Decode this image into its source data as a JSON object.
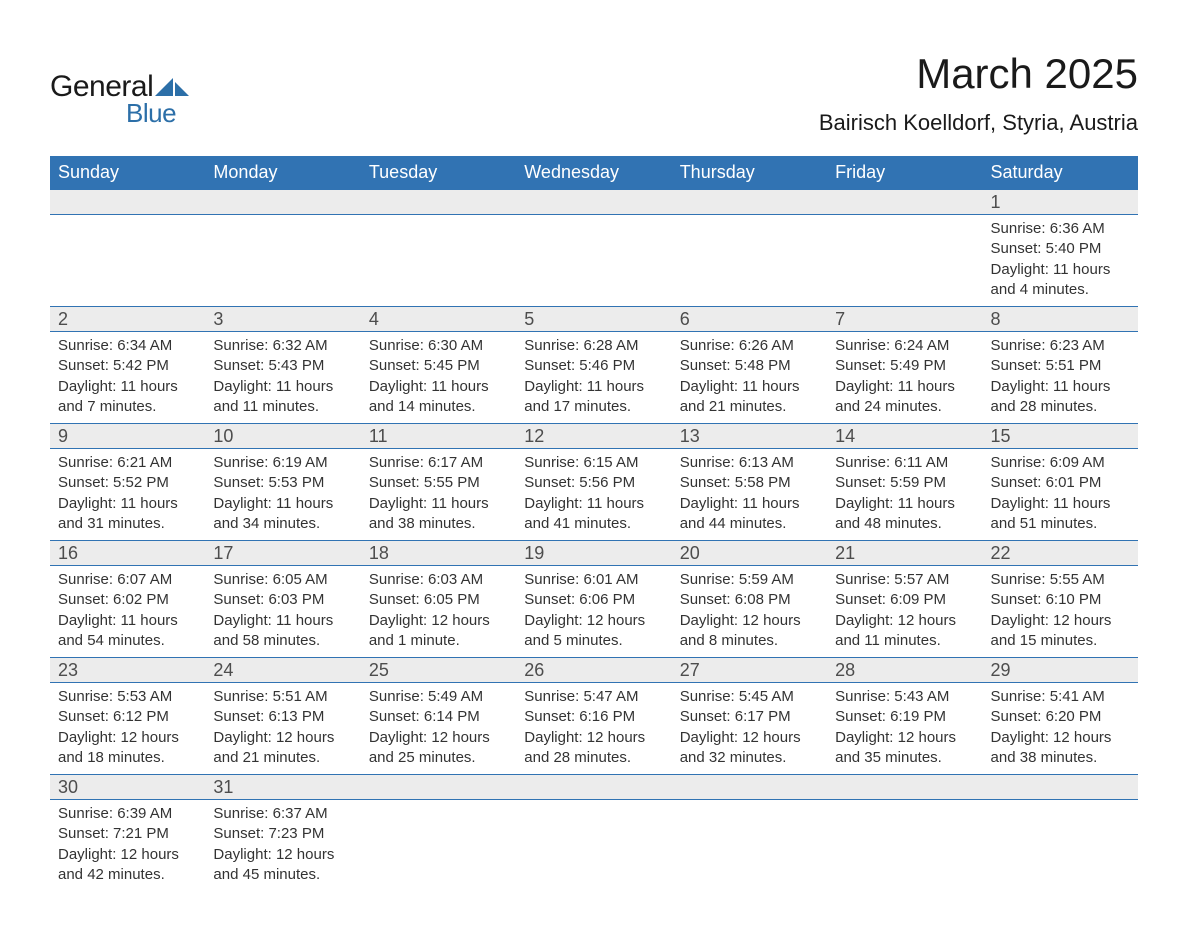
{
  "brand": {
    "name1": "General",
    "name2": "Blue",
    "shape_color": "#2c6fa8"
  },
  "header": {
    "title": "March 2025",
    "location": "Bairisch Koelldorf, Styria, Austria"
  },
  "calendar": {
    "header_bg": "#3173b3",
    "header_fg": "#ffffff",
    "daynum_bg": "#ececec",
    "daynum_fg": "#4d4d4d",
    "rule_color": "#3173b3",
    "text_color": "#333333",
    "days_of_week": [
      "Sunday",
      "Monday",
      "Tuesday",
      "Wednesday",
      "Thursday",
      "Friday",
      "Saturday"
    ],
    "weeks": [
      [
        null,
        null,
        null,
        null,
        null,
        null,
        {
          "n": "1",
          "sunrise": "6:36 AM",
          "sunset": "5:40 PM",
          "daylight": "11 hours and 4 minutes."
        }
      ],
      [
        {
          "n": "2",
          "sunrise": "6:34 AM",
          "sunset": "5:42 PM",
          "daylight": "11 hours and 7 minutes."
        },
        {
          "n": "3",
          "sunrise": "6:32 AM",
          "sunset": "5:43 PM",
          "daylight": "11 hours and 11 minutes."
        },
        {
          "n": "4",
          "sunrise": "6:30 AM",
          "sunset": "5:45 PM",
          "daylight": "11 hours and 14 minutes."
        },
        {
          "n": "5",
          "sunrise": "6:28 AM",
          "sunset": "5:46 PM",
          "daylight": "11 hours and 17 minutes."
        },
        {
          "n": "6",
          "sunrise": "6:26 AM",
          "sunset": "5:48 PM",
          "daylight": "11 hours and 21 minutes."
        },
        {
          "n": "7",
          "sunrise": "6:24 AM",
          "sunset": "5:49 PM",
          "daylight": "11 hours and 24 minutes."
        },
        {
          "n": "8",
          "sunrise": "6:23 AM",
          "sunset": "5:51 PM",
          "daylight": "11 hours and 28 minutes."
        }
      ],
      [
        {
          "n": "9",
          "sunrise": "6:21 AM",
          "sunset": "5:52 PM",
          "daylight": "11 hours and 31 minutes."
        },
        {
          "n": "10",
          "sunrise": "6:19 AM",
          "sunset": "5:53 PM",
          "daylight": "11 hours and 34 minutes."
        },
        {
          "n": "11",
          "sunrise": "6:17 AM",
          "sunset": "5:55 PM",
          "daylight": "11 hours and 38 minutes."
        },
        {
          "n": "12",
          "sunrise": "6:15 AM",
          "sunset": "5:56 PM",
          "daylight": "11 hours and 41 minutes."
        },
        {
          "n": "13",
          "sunrise": "6:13 AM",
          "sunset": "5:58 PM",
          "daylight": "11 hours and 44 minutes."
        },
        {
          "n": "14",
          "sunrise": "6:11 AM",
          "sunset": "5:59 PM",
          "daylight": "11 hours and 48 minutes."
        },
        {
          "n": "15",
          "sunrise": "6:09 AM",
          "sunset": "6:01 PM",
          "daylight": "11 hours and 51 minutes."
        }
      ],
      [
        {
          "n": "16",
          "sunrise": "6:07 AM",
          "sunset": "6:02 PM",
          "daylight": "11 hours and 54 minutes."
        },
        {
          "n": "17",
          "sunrise": "6:05 AM",
          "sunset": "6:03 PM",
          "daylight": "11 hours and 58 minutes."
        },
        {
          "n": "18",
          "sunrise": "6:03 AM",
          "sunset": "6:05 PM",
          "daylight": "12 hours and 1 minute."
        },
        {
          "n": "19",
          "sunrise": "6:01 AM",
          "sunset": "6:06 PM",
          "daylight": "12 hours and 5 minutes."
        },
        {
          "n": "20",
          "sunrise": "5:59 AM",
          "sunset": "6:08 PM",
          "daylight": "12 hours and 8 minutes."
        },
        {
          "n": "21",
          "sunrise": "5:57 AM",
          "sunset": "6:09 PM",
          "daylight": "12 hours and 11 minutes."
        },
        {
          "n": "22",
          "sunrise": "5:55 AM",
          "sunset": "6:10 PM",
          "daylight": "12 hours and 15 minutes."
        }
      ],
      [
        {
          "n": "23",
          "sunrise": "5:53 AM",
          "sunset": "6:12 PM",
          "daylight": "12 hours and 18 minutes."
        },
        {
          "n": "24",
          "sunrise": "5:51 AM",
          "sunset": "6:13 PM",
          "daylight": "12 hours and 21 minutes."
        },
        {
          "n": "25",
          "sunrise": "5:49 AM",
          "sunset": "6:14 PM",
          "daylight": "12 hours and 25 minutes."
        },
        {
          "n": "26",
          "sunrise": "5:47 AM",
          "sunset": "6:16 PM",
          "daylight": "12 hours and 28 minutes."
        },
        {
          "n": "27",
          "sunrise": "5:45 AM",
          "sunset": "6:17 PM",
          "daylight": "12 hours and 32 minutes."
        },
        {
          "n": "28",
          "sunrise": "5:43 AM",
          "sunset": "6:19 PM",
          "daylight": "12 hours and 35 minutes."
        },
        {
          "n": "29",
          "sunrise": "5:41 AM",
          "sunset": "6:20 PM",
          "daylight": "12 hours and 38 minutes."
        }
      ],
      [
        {
          "n": "30",
          "sunrise": "6:39 AM",
          "sunset": "7:21 PM",
          "daylight": "12 hours and 42 minutes."
        },
        {
          "n": "31",
          "sunrise": "6:37 AM",
          "sunset": "7:23 PM",
          "daylight": "12 hours and 45 minutes."
        },
        null,
        null,
        null,
        null,
        null
      ]
    ],
    "labels": {
      "sunrise": "Sunrise:",
      "sunset": "Sunset:",
      "daylight": "Daylight:"
    }
  }
}
